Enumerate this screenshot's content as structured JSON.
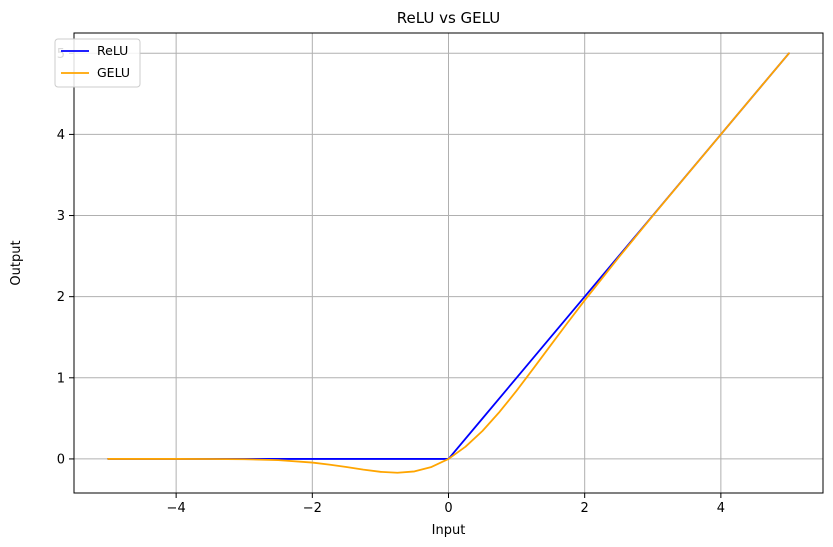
{
  "chart_data": {
    "type": "line",
    "title": "ReLU vs GELU",
    "xlabel": "Input",
    "ylabel": "Output",
    "xlim": [
      -5.5,
      5.5
    ],
    "ylim": [
      -0.42,
      5.25
    ],
    "xticks": [
      -4,
      -2,
      0,
      2,
      4
    ],
    "xtick_labels": [
      "−4",
      "−2",
      "0",
      "2",
      "4"
    ],
    "yticks": [
      0,
      1,
      2,
      3,
      4,
      5
    ],
    "ytick_labels": [
      "0",
      "1",
      "2",
      "3",
      "4",
      "5"
    ],
    "grid": true,
    "legend_position": "upper left",
    "series": [
      {
        "name": "ReLU",
        "color": "#0000ff",
        "x": [
          -5,
          -4,
          -3,
          -2,
          -1,
          -0.5,
          0,
          0.5,
          1,
          1.5,
          2,
          2.5,
          3,
          3.5,
          4,
          4.5,
          5
        ],
        "y": [
          0,
          0,
          0,
          0,
          0,
          0,
          0,
          0.5,
          1,
          1.5,
          2,
          2.5,
          3,
          3.5,
          4,
          4.5,
          5
        ]
      },
      {
        "name": "GELU",
        "color": "#ffa500",
        "x": [
          -5,
          -4,
          -3.5,
          -3,
          -2.5,
          -2,
          -1.75,
          -1.5,
          -1.25,
          -1,
          -0.75,
          -0.5,
          -0.25,
          0,
          0.25,
          0.5,
          0.75,
          1,
          1.25,
          1.5,
          1.75,
          2,
          2.5,
          3,
          3.5,
          4,
          4.5,
          5
        ],
        "y": [
          0,
          0,
          -0.001,
          -0.004,
          -0.015,
          -0.045,
          -0.07,
          -0.1,
          -0.132,
          -0.159,
          -0.17,
          -0.154,
          -0.099,
          0,
          0.151,
          0.346,
          0.58,
          0.841,
          1.118,
          1.4,
          1.68,
          1.955,
          2.485,
          2.996,
          3.499,
          4,
          4.5,
          5
        ]
      }
    ]
  }
}
